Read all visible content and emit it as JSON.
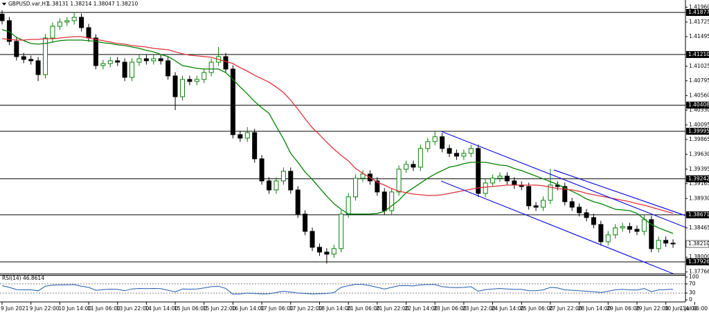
{
  "chart_data": {
    "type": "candlestick",
    "title": "GBPUSD.var,H1",
    "subtitle": "1.38131 1.38214 1.38047 1.38210",
    "categories": [
      "9 Jun 2021",
      null,
      null,
      null,
      "9 Jun 22:00",
      null,
      null,
      null,
      "10 Jun 14:00",
      null,
      null,
      null,
      "11 Jun 06:00",
      null,
      null,
      null,
      "13 Jun 22:00",
      null,
      null,
      null,
      "14 Jun 14:00",
      null,
      null,
      null,
      "15 Jun 06:00",
      null,
      null,
      null,
      "15 Jun 22:00",
      null,
      null,
      null,
      "16 Jun 14:00",
      null,
      null,
      null,
      "17 Jun 06:00",
      null,
      null,
      null,
      "17 Jun 22:00",
      null,
      null,
      null,
      "18 Jun 14:00",
      null,
      null,
      null,
      "21 Jun 06:00",
      null,
      null,
      null,
      "21 Jun 22:00",
      null,
      null,
      null,
      "22 Jun 14:00",
      null,
      null,
      null,
      "23 Jun 06:00",
      null,
      null,
      null,
      "23 Jun 22:00",
      null,
      null,
      null,
      "24 Jun 14:00",
      null,
      null,
      null,
      "25 Jun 06:00",
      null,
      null,
      null,
      "27 Jun 22:00",
      null,
      null,
      null,
      "28 Jun 14:00",
      null,
      null,
      null,
      "29 Jun 06:00",
      null,
      null,
      null,
      "29 Jun 22:00",
      null,
      null,
      null,
      "30 Jun 14:00",
      null,
      null,
      null,
      "1 Jul 06:00"
    ],
    "open": [
      1.4185,
      1.41746,
      1.41418,
      1.41177,
      1.41133,
      1.41111,
      1.40892,
      1.41472,
      1.41658,
      1.41724,
      1.41746,
      1.418,
      1.41636,
      1.41472,
      1.41035,
      1.41067,
      1.41111,
      1.41089,
      1.40849,
      1.41089,
      1.41144,
      1.41111,
      1.41144,
      1.41111,
      1.40871,
      1.40542,
      1.40816,
      1.40783,
      1.40816,
      1.40925,
      1.41089,
      1.41177,
      1.4098,
      1.39941,
      1.39886,
      1.39973,
      1.39558,
      1.39208,
      1.39065,
      1.39208,
      1.39361,
      1.39065,
      1.38683,
      1.38409,
      1.38157,
      1.38081,
      1.38048,
      1.38136,
      1.38683,
      1.38956,
      1.39251,
      1.39317,
      1.39208,
      1.39033,
      1.38737,
      1.39033,
      1.39394,
      1.3947,
      1.39426,
      1.39722,
      1.39831,
      1.39908,
      1.39722,
      1.39645,
      1.39601,
      1.39645,
      1.39722,
      1.39011,
      1.39175,
      1.39251,
      1.39284,
      1.39208,
      1.39142,
      1.3912,
      1.38814,
      1.38792,
      1.38901,
      1.39142,
      1.3912,
      1.38879,
      1.38792,
      1.38704,
      1.38628,
      1.38518,
      1.38245,
      1.38354,
      1.38464,
      1.38486,
      1.38442,
      1.38409,
      1.38595,
      1.38136,
      1.38267,
      1.38223,
      null,
      null,
      null
    ],
    "high": [
      1.4191,
      1.41806,
      1.41478,
      1.41237,
      1.41193,
      1.41171,
      1.41532,
      1.41718,
      1.41784,
      1.41806,
      1.41877,
      1.4186,
      1.41696,
      1.41532,
      1.41127,
      1.41171,
      1.41171,
      1.41149,
      1.41149,
      1.41204,
      1.41204,
      1.41204,
      1.41204,
      1.41171,
      1.40931,
      1.40876,
      1.40876,
      1.40876,
      1.40985,
      1.41149,
      1.4133,
      1.41237,
      1.4104,
      1.40001,
      1.4006,
      1.40033,
      1.39618,
      1.39268,
      1.39268,
      1.39421,
      1.39421,
      1.39125,
      1.38743,
      1.38469,
      1.38217,
      1.38141,
      1.38196,
      1.38743,
      1.39016,
      1.39311,
      1.39377,
      1.39377,
      1.39268,
      1.39093,
      1.39093,
      1.39454,
      1.3953,
      1.3953,
      1.39782,
      1.39891,
      1.39995,
      1.39968,
      1.39782,
      1.39705,
      1.39705,
      1.39782,
      1.39782,
      1.39235,
      1.39311,
      1.39344,
      1.39344,
      1.39268,
      1.39202,
      1.3918,
      1.38874,
      1.38961,
      1.394,
      1.39202,
      1.3918,
      1.38939,
      1.38852,
      1.38764,
      1.38688,
      1.38578,
      1.38414,
      1.38524,
      1.38546,
      1.38546,
      1.38502,
      1.38671,
      1.38655,
      1.38327,
      1.38327,
      1.38283,
      null,
      null,
      null
    ],
    "low": [
      1.41686,
      1.41358,
      1.41117,
      1.41073,
      1.41051,
      1.4079,
      1.40832,
      1.41412,
      1.41598,
      1.41664,
      1.41686,
      1.41576,
      1.41412,
      1.40975,
      1.40975,
      1.41007,
      1.41029,
      1.40789,
      1.40789,
      1.41029,
      1.41051,
      1.41051,
      1.41051,
      1.40811,
      1.4033,
      1.40482,
      1.40723,
      1.40723,
      1.40756,
      1.40865,
      1.41029,
      1.4092,
      1.39881,
      1.39826,
      1.39826,
      1.39498,
      1.39148,
      1.39005,
      1.39005,
      1.39148,
      1.39005,
      1.38623,
      1.38349,
      1.38097,
      1.38021,
      1.379,
      1.37988,
      1.38076,
      1.38623,
      1.38896,
      1.39191,
      1.39148,
      1.38973,
      1.38671,
      1.38677,
      1.38973,
      1.39334,
      1.39366,
      1.39366,
      1.39662,
      1.39771,
      1.39662,
      1.39585,
      1.39541,
      1.39541,
      1.39585,
      1.38951,
      1.38951,
      1.39115,
      1.39191,
      1.39148,
      1.39082,
      1.3906,
      1.38754,
      1.38732,
      1.38732,
      1.38841,
      1.3906,
      1.38819,
      1.38732,
      1.38644,
      1.38568,
      1.38458,
      1.38185,
      1.38185,
      1.38294,
      1.38404,
      1.38382,
      1.38349,
      1.38349,
      1.38076,
      1.38076,
      1.38163,
      1.3815,
      null,
      null,
      null
    ],
    "close": [
      1.41746,
      1.41418,
      1.41177,
      1.41133,
      1.41111,
      1.40892,
      1.41472,
      1.41658,
      1.41724,
      1.41746,
      1.418,
      1.41636,
      1.41472,
      1.41035,
      1.41067,
      1.41111,
      1.41089,
      1.40849,
      1.41089,
      1.41144,
      1.41111,
      1.41144,
      1.41111,
      1.40871,
      1.40542,
      1.40816,
      1.40783,
      1.40816,
      1.40925,
      1.41089,
      1.41177,
      1.4098,
      1.39941,
      1.39886,
      1.39973,
      1.39558,
      1.39208,
      1.39065,
      1.39208,
      1.39361,
      1.39065,
      1.38683,
      1.38409,
      1.38157,
      1.38081,
      1.38048,
      1.38136,
      1.38683,
      1.38956,
      1.39251,
      1.39317,
      1.39208,
      1.39033,
      1.38737,
      1.39033,
      1.39394,
      1.3947,
      1.39426,
      1.39722,
      1.39831,
      1.39908,
      1.39722,
      1.39645,
      1.39601,
      1.39645,
      1.39722,
      1.39011,
      1.39175,
      1.39251,
      1.39284,
      1.39208,
      1.39142,
      1.3912,
      1.38814,
      1.38792,
      1.38901,
      1.39142,
      1.3912,
      1.38879,
      1.38792,
      1.38704,
      1.38628,
      1.38518,
      1.38245,
      1.38354,
      1.38464,
      1.38486,
      1.38442,
      1.38409,
      1.38595,
      1.38136,
      1.38267,
      1.38223,
      1.3821,
      null,
      null,
      null
    ],
    "up_color": "#0a7d0a",
    "down_color": "#000000",
    "series": [
      {
        "color": "#008000",
        "values": [
          1.41604,
          1.41571,
          1.41483,
          1.41429,
          1.41385,
          1.41374,
          1.41385,
          1.41407,
          1.41429,
          1.41439,
          1.41439,
          1.41439,
          1.41429,
          1.41418,
          1.41396,
          1.41385,
          1.41363,
          1.41352,
          1.4133,
          1.41308,
          1.41275,
          1.41253,
          1.4121,
          1.41177,
          1.41111,
          1.41035,
          1.41013,
          1.40991,
          1.4098,
          1.4098,
          1.4098,
          1.40925,
          1.40816,
          1.40696,
          1.40586,
          1.40466,
          1.40367,
          1.4028,
          1.40072,
          1.39875,
          1.39645,
          1.39503,
          1.3935,
          1.3923,
          1.39098,
          1.38967,
          1.38847,
          1.38759,
          1.38683,
          1.38683,
          1.38683,
          1.38683,
          1.38694,
          1.38726,
          1.38814,
          1.38901,
          1.39022,
          1.39098,
          1.39175,
          1.39251,
          1.39317,
          1.39372,
          1.39426,
          1.39448,
          1.39481,
          1.39503,
          1.39503,
          1.39503,
          1.39481,
          1.39459,
          1.39448,
          1.39405,
          1.39372,
          1.39328,
          1.39284,
          1.39241,
          1.39197,
          1.39153,
          1.39098,
          1.39044,
          1.38989,
          1.38923,
          1.38879,
          1.38847,
          1.38803,
          1.38759,
          1.38748,
          1.38737,
          1.38694,
          1.38606,
          1.38518,
          1.38464,
          1.3842,
          1.38376,
          null,
          null,
          null
        ]
      },
      {
        "color": "#e0303a",
        "values": [
          1.41461,
          1.4145,
          1.41439,
          1.41439,
          1.4145,
          1.4145,
          1.41461,
          1.41461,
          1.41472,
          1.41483,
          1.41494,
          1.41494,
          1.41472,
          1.4145,
          1.41429,
          1.41407,
          1.41385,
          1.41374,
          1.41352,
          1.41341,
          1.4133,
          1.41308,
          1.41297,
          1.41286,
          1.41253,
          1.41221,
          1.41199,
          1.41188,
          1.41177,
          1.41166,
          1.41133,
          1.411,
          1.41067,
          1.41002,
          1.40947,
          1.40882,
          1.40827,
          1.40772,
          1.40696,
          1.40608,
          1.40488,
          1.40345,
          1.40192,
          1.4005,
          1.39941,
          1.3982,
          1.39711,
          1.39612,
          1.39525,
          1.39405,
          1.39328,
          1.39262,
          1.39186,
          1.39142,
          1.39087,
          1.39044,
          1.39022,
          1.39,
          1.38989,
          1.38978,
          1.38978,
          1.38989,
          1.39011,
          1.39033,
          1.39055,
          1.39076,
          1.39098,
          1.39109,
          1.3912,
          1.39131,
          1.39142,
          1.39142,
          1.39142,
          1.39142,
          1.39142,
          1.39131,
          1.39109,
          1.39087,
          1.39076,
          1.39065,
          1.39044,
          1.39011,
          1.38989,
          1.38967,
          1.38945,
          1.38923,
          1.38901,
          1.38879,
          1.38847,
          1.38825,
          1.38792,
          1.38759,
          1.38726,
          1.38694,
          null,
          null,
          null
        ]
      }
    ],
    "ylim": [
      1.3774,
      1.42019
    ],
    "yticks": [
      {
        "value": 1.4196,
        "label": "1.41960"
      },
      {
        "value": 1.41725,
        "label": "1.41725"
      },
      {
        "value": 1.41495,
        "label": "1.41495"
      },
      {
        "value": 1.41025,
        "label": "1.41025"
      },
      {
        "value": 1.40795,
        "label": "1.40795"
      },
      {
        "value": 1.4056,
        "label": "1.40560"
      },
      {
        "value": 1.4033,
        "label": "1.40330"
      },
      {
        "value": 1.40095,
        "label": "1.40095"
      },
      {
        "value": 1.39865,
        "label": "1.39865"
      },
      {
        "value": 1.3963,
        "label": "1.39630"
      },
      {
        "value": 1.39395,
        "label": "1.39395"
      },
      {
        "value": 1.39165,
        "label": "1.39165"
      },
      {
        "value": 1.3893,
        "label": "1.38930"
      },
      {
        "value": 1.38465,
        "label": "1.38465"
      },
      {
        "value": 1.38,
        "label": "1.38000"
      },
      {
        "value": 1.37766,
        "label": "1.37766"
      }
    ],
    "levels": [
      {
        "value": 1.41877,
        "label": "1.41877"
      },
      {
        "value": 1.4121,
        "label": "1.41210"
      },
      {
        "value": 1.40408,
        "label": "1.40408"
      },
      {
        "value": 1.39995,
        "label": "1.39995"
      },
      {
        "value": 1.39242,
        "label": "1.39242"
      },
      {
        "value": 1.38671,
        "label": "1.38671"
      },
      {
        "value": 1.37926,
        "label": "1.37926"
      }
    ],
    "current_price": {
      "value": 1.3821,
      "label": "1.38210"
    },
    "rsi": {
      "title": "RSI(14) 46.8614",
      "color": "#1e5aa8",
      "values": [
        62,
        55,
        45,
        44,
        44,
        40,
        60,
        65,
        66,
        66,
        67,
        60,
        55,
        42,
        45,
        47,
        46,
        40,
        48,
        50,
        49,
        50,
        49,
        42,
        35,
        48,
        47,
        48,
        52,
        58,
        60,
        50,
        25,
        26,
        30,
        28,
        26,
        27,
        32,
        38,
        34,
        30,
        28,
        26,
        27,
        28,
        32,
        55,
        62,
        68,
        68,
        62,
        55,
        48,
        55,
        62,
        63,
        61,
        66,
        67,
        67,
        58,
        55,
        54,
        55,
        58,
        38,
        45,
        48,
        50,
        48,
        46,
        46,
        40,
        40,
        44,
        55,
        52,
        44,
        42,
        40,
        38,
        36,
        32,
        38,
        44,
        46,
        44,
        43,
        50,
        36,
        44,
        45,
        46.8614,
        null,
        null,
        null
      ],
      "ylim": [
        0,
        100
      ],
      "yticks": [
        100,
        70,
        30,
        0
      ],
      "levels": [
        70,
        30
      ]
    }
  }
}
